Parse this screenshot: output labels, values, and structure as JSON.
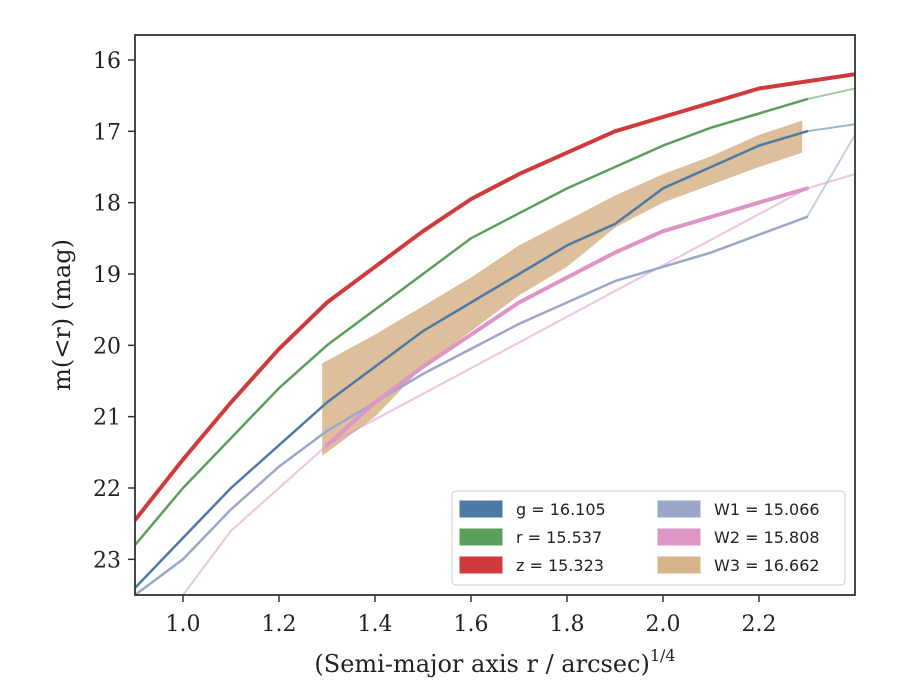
{
  "chart_data": {
    "type": "line",
    "xlabel": "(Semi-major axis r / arcsec)",
    "xlabel_sup": "1/4",
    "ylabel": "m(<r) (mag)",
    "xlim": [
      0.9,
      2.4
    ],
    "ylim": [
      23.5,
      15.65
    ],
    "y_inverted": true,
    "x_ticks": [
      1.0,
      1.2,
      1.4,
      1.6,
      1.8,
      2.0,
      2.2
    ],
    "x_tick_labels": [
      "1.0",
      "1.2",
      "1.4",
      "1.6",
      "1.8",
      "2.0",
      "2.2"
    ],
    "y_ticks": [
      16,
      17,
      18,
      19,
      20,
      21,
      22,
      23
    ],
    "y_tick_labels": [
      "16",
      "17",
      "18",
      "19",
      "20",
      "21",
      "22",
      "23"
    ],
    "grid": false,
    "legend_position": "lower-right",
    "legend_columns": 2,
    "series": [
      {
        "name": "g",
        "label": "g = 16.105",
        "color": "#4c7aa6",
        "style": "line-with-faint-extension",
        "x": [
          0.9,
          1.0,
          1.1,
          1.2,
          1.3,
          1.4,
          1.5,
          1.6,
          1.7,
          1.8,
          1.9,
          2.0,
          2.1,
          2.2,
          2.3
        ],
        "y": [
          23.4,
          22.7,
          22.0,
          21.4,
          20.8,
          20.3,
          19.8,
          19.4,
          19.0,
          18.6,
          18.3,
          17.8,
          17.5,
          17.2,
          17.0
        ],
        "extension_x": [
          2.3,
          2.4
        ],
        "extension_y": [
          17.0,
          16.9
        ]
      },
      {
        "name": "r",
        "label": "r = 15.537",
        "color": "#5aa05a",
        "style": "line-with-faint-extension",
        "x": [
          0.9,
          1.0,
          1.1,
          1.2,
          1.3,
          1.4,
          1.5,
          1.6,
          1.7,
          1.8,
          1.9,
          2.0,
          2.1,
          2.2,
          2.3
        ],
        "y": [
          22.8,
          22.0,
          21.3,
          20.6,
          20.0,
          19.5,
          19.0,
          18.5,
          18.15,
          17.8,
          17.5,
          17.2,
          16.95,
          16.75,
          16.55
        ],
        "extension_x": [
          2.3,
          2.4
        ],
        "extension_y": [
          16.55,
          16.4
        ]
      },
      {
        "name": "z",
        "label": "z = 15.323",
        "color": "#d03a3a",
        "style": "thick-line",
        "x": [
          0.9,
          1.0,
          1.1,
          1.2,
          1.3,
          1.4,
          1.5,
          1.6,
          1.7,
          1.8,
          1.9,
          2.0,
          2.1,
          2.2,
          2.3,
          2.4
        ],
        "y": [
          22.45,
          21.6,
          20.8,
          20.05,
          19.4,
          18.9,
          18.4,
          17.95,
          17.6,
          17.3,
          17.0,
          16.8,
          16.6,
          16.4,
          16.3,
          16.2
        ]
      },
      {
        "name": "W1",
        "label": "W1 = 15.066",
        "color": "#9aa7c8",
        "style": "line-with-faint-extension",
        "x": [
          0.9,
          1.0,
          1.1,
          1.2,
          1.3,
          1.4,
          1.5,
          1.6,
          1.7,
          1.8,
          1.9,
          2.0,
          2.1,
          2.2,
          2.3
        ],
        "y": [
          23.5,
          23.0,
          22.3,
          21.7,
          21.2,
          20.8,
          20.4,
          20.05,
          19.7,
          19.4,
          19.1,
          18.9,
          18.7,
          18.45,
          18.2
        ],
        "extension_x": [
          2.3,
          2.4
        ],
        "extension_y": [
          18.2,
          17.05
        ]
      },
      {
        "name": "W2",
        "label": "W2 = 15.808",
        "color": "#dd95c6",
        "style": "thick-line-with-faint-extension",
        "x": [
          1.3,
          1.4,
          1.5,
          1.6,
          1.7,
          1.8,
          1.9,
          2.0,
          2.1,
          2.2,
          2.3
        ],
        "y": [
          21.4,
          20.8,
          20.3,
          19.85,
          19.4,
          19.05,
          18.7,
          18.4,
          18.2,
          18.0,
          17.8
        ],
        "extension_x": [
          1.0,
          1.1,
          1.2,
          1.3,
          2.3,
          2.4
        ],
        "extension_y": [
          23.5,
          22.6,
          22.0,
          21.4,
          17.8,
          17.6
        ]
      },
      {
        "name": "W3",
        "label": "W3 = 16.662",
        "color": "#d8b48a",
        "style": "band",
        "x": [
          1.29,
          1.4,
          1.5,
          1.6,
          1.7,
          1.8,
          1.9,
          2.0,
          2.1,
          2.2,
          2.29
        ],
        "y_upper": [
          20.25,
          19.85,
          19.45,
          19.05,
          18.6,
          18.25,
          17.9,
          17.6,
          17.35,
          17.05,
          16.85
        ],
        "y_lower": [
          21.55,
          21.0,
          20.3,
          19.8,
          19.3,
          18.9,
          18.35,
          18.0,
          17.75,
          17.5,
          17.3
        ]
      }
    ]
  }
}
